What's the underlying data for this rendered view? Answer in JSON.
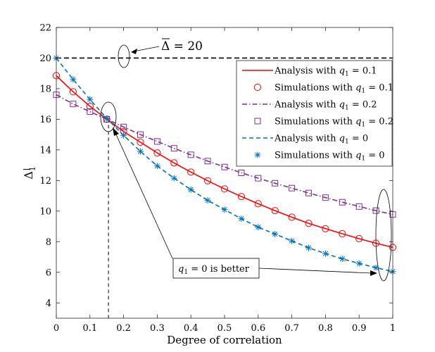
{
  "chart_data": {
    "type": "line",
    "xlabel": "Degree of correlation",
    "ylabel_base": "Δ",
    "ylabel_sub": "1",
    "xlim": [
      0,
      1
    ],
    "ylim": [
      3,
      22
    ],
    "xticks": [
      0,
      0.1,
      0.2,
      0.3,
      0.4,
      0.5,
      0.6,
      0.7,
      0.8,
      0.9,
      1
    ],
    "xtick_labels": [
      "0",
      "0.1",
      "0.2",
      "0.3",
      "0.4",
      "0.5",
      "0.6",
      "0.7",
      "0.8",
      "0.9",
      "1"
    ],
    "yticks": [
      4,
      6,
      8,
      10,
      12,
      14,
      16,
      18,
      20,
      22
    ],
    "ytick_labels": [
      "4",
      "6",
      "8",
      "10",
      "12",
      "14",
      "16",
      "18",
      "20",
      "22"
    ],
    "x": [
      0,
      0.05,
      0.1,
      0.15,
      0.2,
      0.25,
      0.3,
      0.35,
      0.4,
      0.45,
      0.5,
      0.55,
      0.6,
      0.65,
      0.7,
      0.75,
      0.8,
      0.85,
      0.9,
      0.95,
      1
    ],
    "series": [
      {
        "name": "Analysis with q1 = 0.1",
        "label_prefix": "Analysis with ",
        "label_var": "q",
        "label_sub": "1",
        "label_suffix": " = 0.1",
        "style": "solid",
        "color": "#ff0000",
        "values": [
          18.85,
          17.8,
          16.85,
          16.0,
          15.2,
          14.5,
          13.8,
          13.15,
          12.55,
          11.98,
          11.45,
          10.95,
          10.48,
          10.03,
          9.6,
          9.2,
          8.85,
          8.52,
          8.2,
          7.9,
          7.63
        ]
      },
      {
        "name": "Simulations with q1 = 0.1",
        "label_prefix": "Simulations with ",
        "label_var": "q",
        "label_sub": "1",
        "label_suffix": " = 0.1",
        "style": "marker-circle",
        "color": "#ff0000",
        "values": [
          18.85,
          17.8,
          16.85,
          16.0,
          15.2,
          14.5,
          13.8,
          13.15,
          12.55,
          11.98,
          11.45,
          10.95,
          10.48,
          10.03,
          9.6,
          9.2,
          8.85,
          8.52,
          8.2,
          7.9,
          7.63
        ]
      },
      {
        "name": "Analysis with q1 = 0.2",
        "label_prefix": "Analysis with ",
        "label_var": "q",
        "label_sub": "1",
        "label_suffix": " = 0.2",
        "style": "dashdot",
        "color": "#7e2f8e",
        "values": [
          17.6,
          17.0,
          16.5,
          16.0,
          15.5,
          15.0,
          14.55,
          14.1,
          13.68,
          13.27,
          12.88,
          12.5,
          12.15,
          11.82,
          11.5,
          11.18,
          10.88,
          10.58,
          10.3,
          10.03,
          9.78
        ]
      },
      {
        "name": "Simulations with q1 = 0.2",
        "label_prefix": "Simulations with ",
        "label_var": "q",
        "label_sub": "1",
        "label_suffix": " = 0.2",
        "style": "marker-square",
        "color": "#7e2f8e",
        "values": [
          17.6,
          17.0,
          16.5,
          16.0,
          15.5,
          15.0,
          14.55,
          14.1,
          13.68,
          13.27,
          12.88,
          12.5,
          12.15,
          11.82,
          11.5,
          11.18,
          10.88,
          10.58,
          10.3,
          10.03,
          9.78
        ]
      },
      {
        "name": "Analysis with q1 = 0",
        "label_prefix": "Analysis with ",
        "label_var": "q",
        "label_sub": "1",
        "label_suffix": " = 0",
        "style": "dashed",
        "color": "#0072bd",
        "values": [
          20.0,
          18.6,
          17.3,
          16.05,
          14.95,
          13.9,
          12.95,
          12.15,
          11.4,
          10.7,
          10.1,
          9.5,
          8.95,
          8.5,
          8.05,
          7.6,
          7.22,
          6.88,
          6.58,
          6.3,
          6.05
        ]
      },
      {
        "name": "Simulations with q1 = 0",
        "label_prefix": "Simulations with ",
        "label_var": "q",
        "label_sub": "1",
        "label_suffix": " = 0",
        "style": "marker-asterisk",
        "color": "#0072bd",
        "values": [
          20.0,
          18.6,
          17.3,
          16.05,
          14.95,
          13.9,
          12.95,
          12.15,
          11.4,
          10.7,
          10.1,
          9.5,
          8.95,
          8.5,
          8.05,
          7.6,
          7.22,
          6.88,
          6.58,
          6.3,
          6.05
        ]
      }
    ],
    "reference_line": {
      "y": 20,
      "style": "dashed",
      "color": "#000000"
    },
    "vertical_line": {
      "x": 0.155,
      "style": "dashed",
      "color": "#000000"
    },
    "annotations": {
      "delta_hat_base": "Δ",
      "delta_hat_value": " = 20",
      "better_var": "q",
      "better_sub": "1",
      "better_rest": " = 0 is better"
    },
    "legend": {
      "location": "top-right"
    },
    "grid": false
  }
}
